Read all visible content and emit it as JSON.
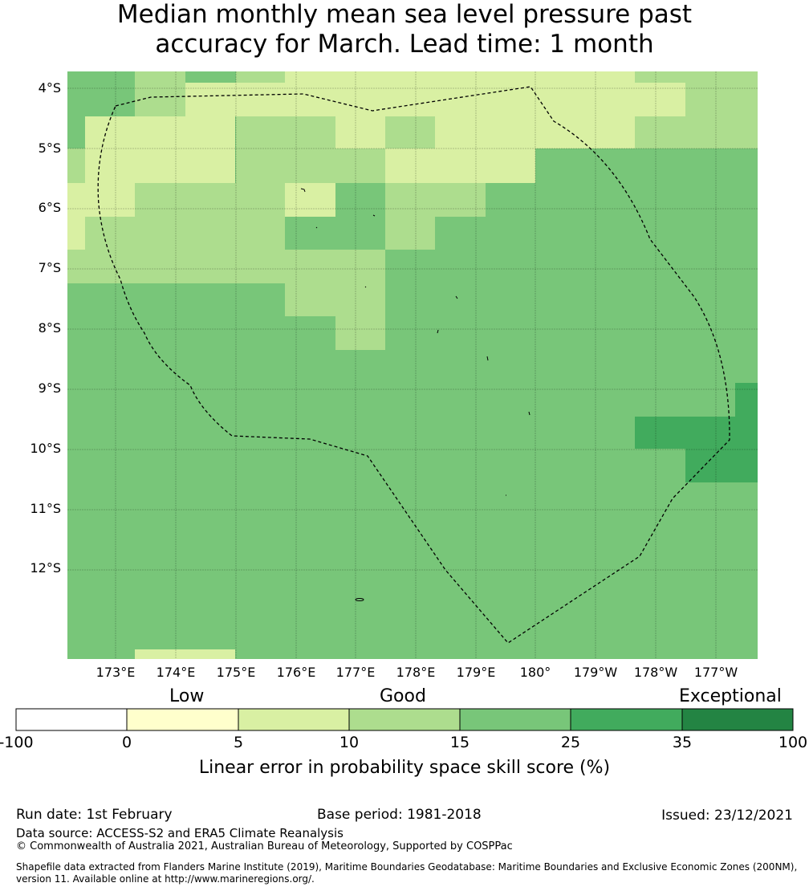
{
  "title": {
    "line1": "Median monthly mean sea level pressure past",
    "line2": "accuracy for March. Lead time: 1 month"
  },
  "map": {
    "lat_labels": [
      "4°S",
      "5°S",
      "6°S",
      "7°S",
      "8°S",
      "9°S",
      "10°S",
      "11°S",
      "12°S"
    ],
    "lon_labels": [
      "173°E",
      "174°E",
      "175°E",
      "176°E",
      "177°E",
      "178°E",
      "179°E",
      "180°",
      "179°W",
      "178°W",
      "177°W"
    ],
    "grid_color": "#000000",
    "boundary_style": "dashed",
    "base_color": "#78c679"
  },
  "colorbar": {
    "categories": [
      "Low",
      "Good",
      "Exceptional"
    ],
    "ticks": [
      "-100",
      "0",
      "5",
      "10",
      "15",
      "25",
      "35",
      "100"
    ],
    "colors": [
      "#ffffff",
      "#ffffcc",
      "#d9f0a3",
      "#addd8e",
      "#78c679",
      "#41ab5d",
      "#238443"
    ],
    "caption": "Linear error in probability space skill score (%)"
  },
  "footer": {
    "run_date": "Run date: 1st February",
    "base_period": "Base period: 1981-2018",
    "issued": "Issued: 23/12/2021",
    "data_source": "Data source: ACCESS-S2 and ERA5 Climate Reanalysis",
    "copyright": "© Commonwealth of Australia 2021, Australian Bureau of Meteorology, Supported by COSPPac",
    "shapefile_line1": "Shapefile data extracted from Flanders Marine Institute (2019), Maritime Boundaries Geodatabase: Maritime Boundaries and Exclusive Economic Zones (200NM),",
    "shapefile_line2": "version 11. Available online at http://www.marineregions.org/."
  }
}
